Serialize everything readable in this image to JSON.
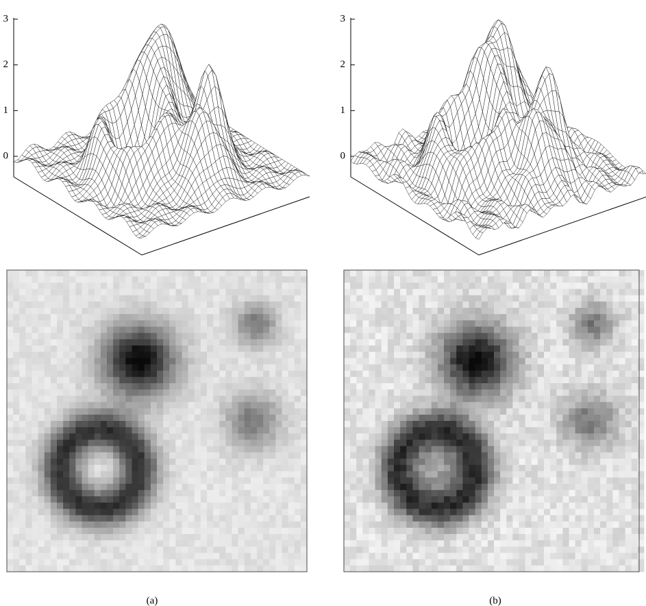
{
  "panels": [
    {
      "label": "(a)",
      "zticks": [
        0,
        1,
        2,
        3
      ]
    },
    {
      "label": "(b)",
      "zticks": [
        0,
        1,
        2,
        3
      ]
    }
  ]
}
